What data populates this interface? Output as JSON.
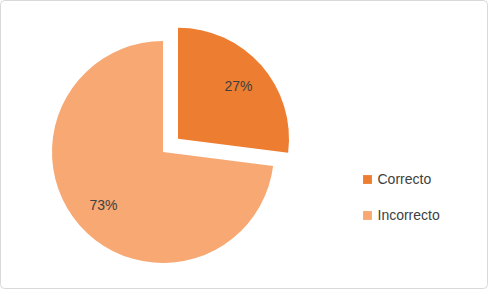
{
  "chart_data": {
    "type": "pie",
    "categories": [
      "Correcto",
      "Incorrecto"
    ],
    "values": [
      27,
      73
    ],
    "value_labels": [
      "27%",
      "73%"
    ],
    "colors": [
      "#ED7D31",
      "#F7A873"
    ],
    "data_labels": true,
    "legend": "right"
  }
}
